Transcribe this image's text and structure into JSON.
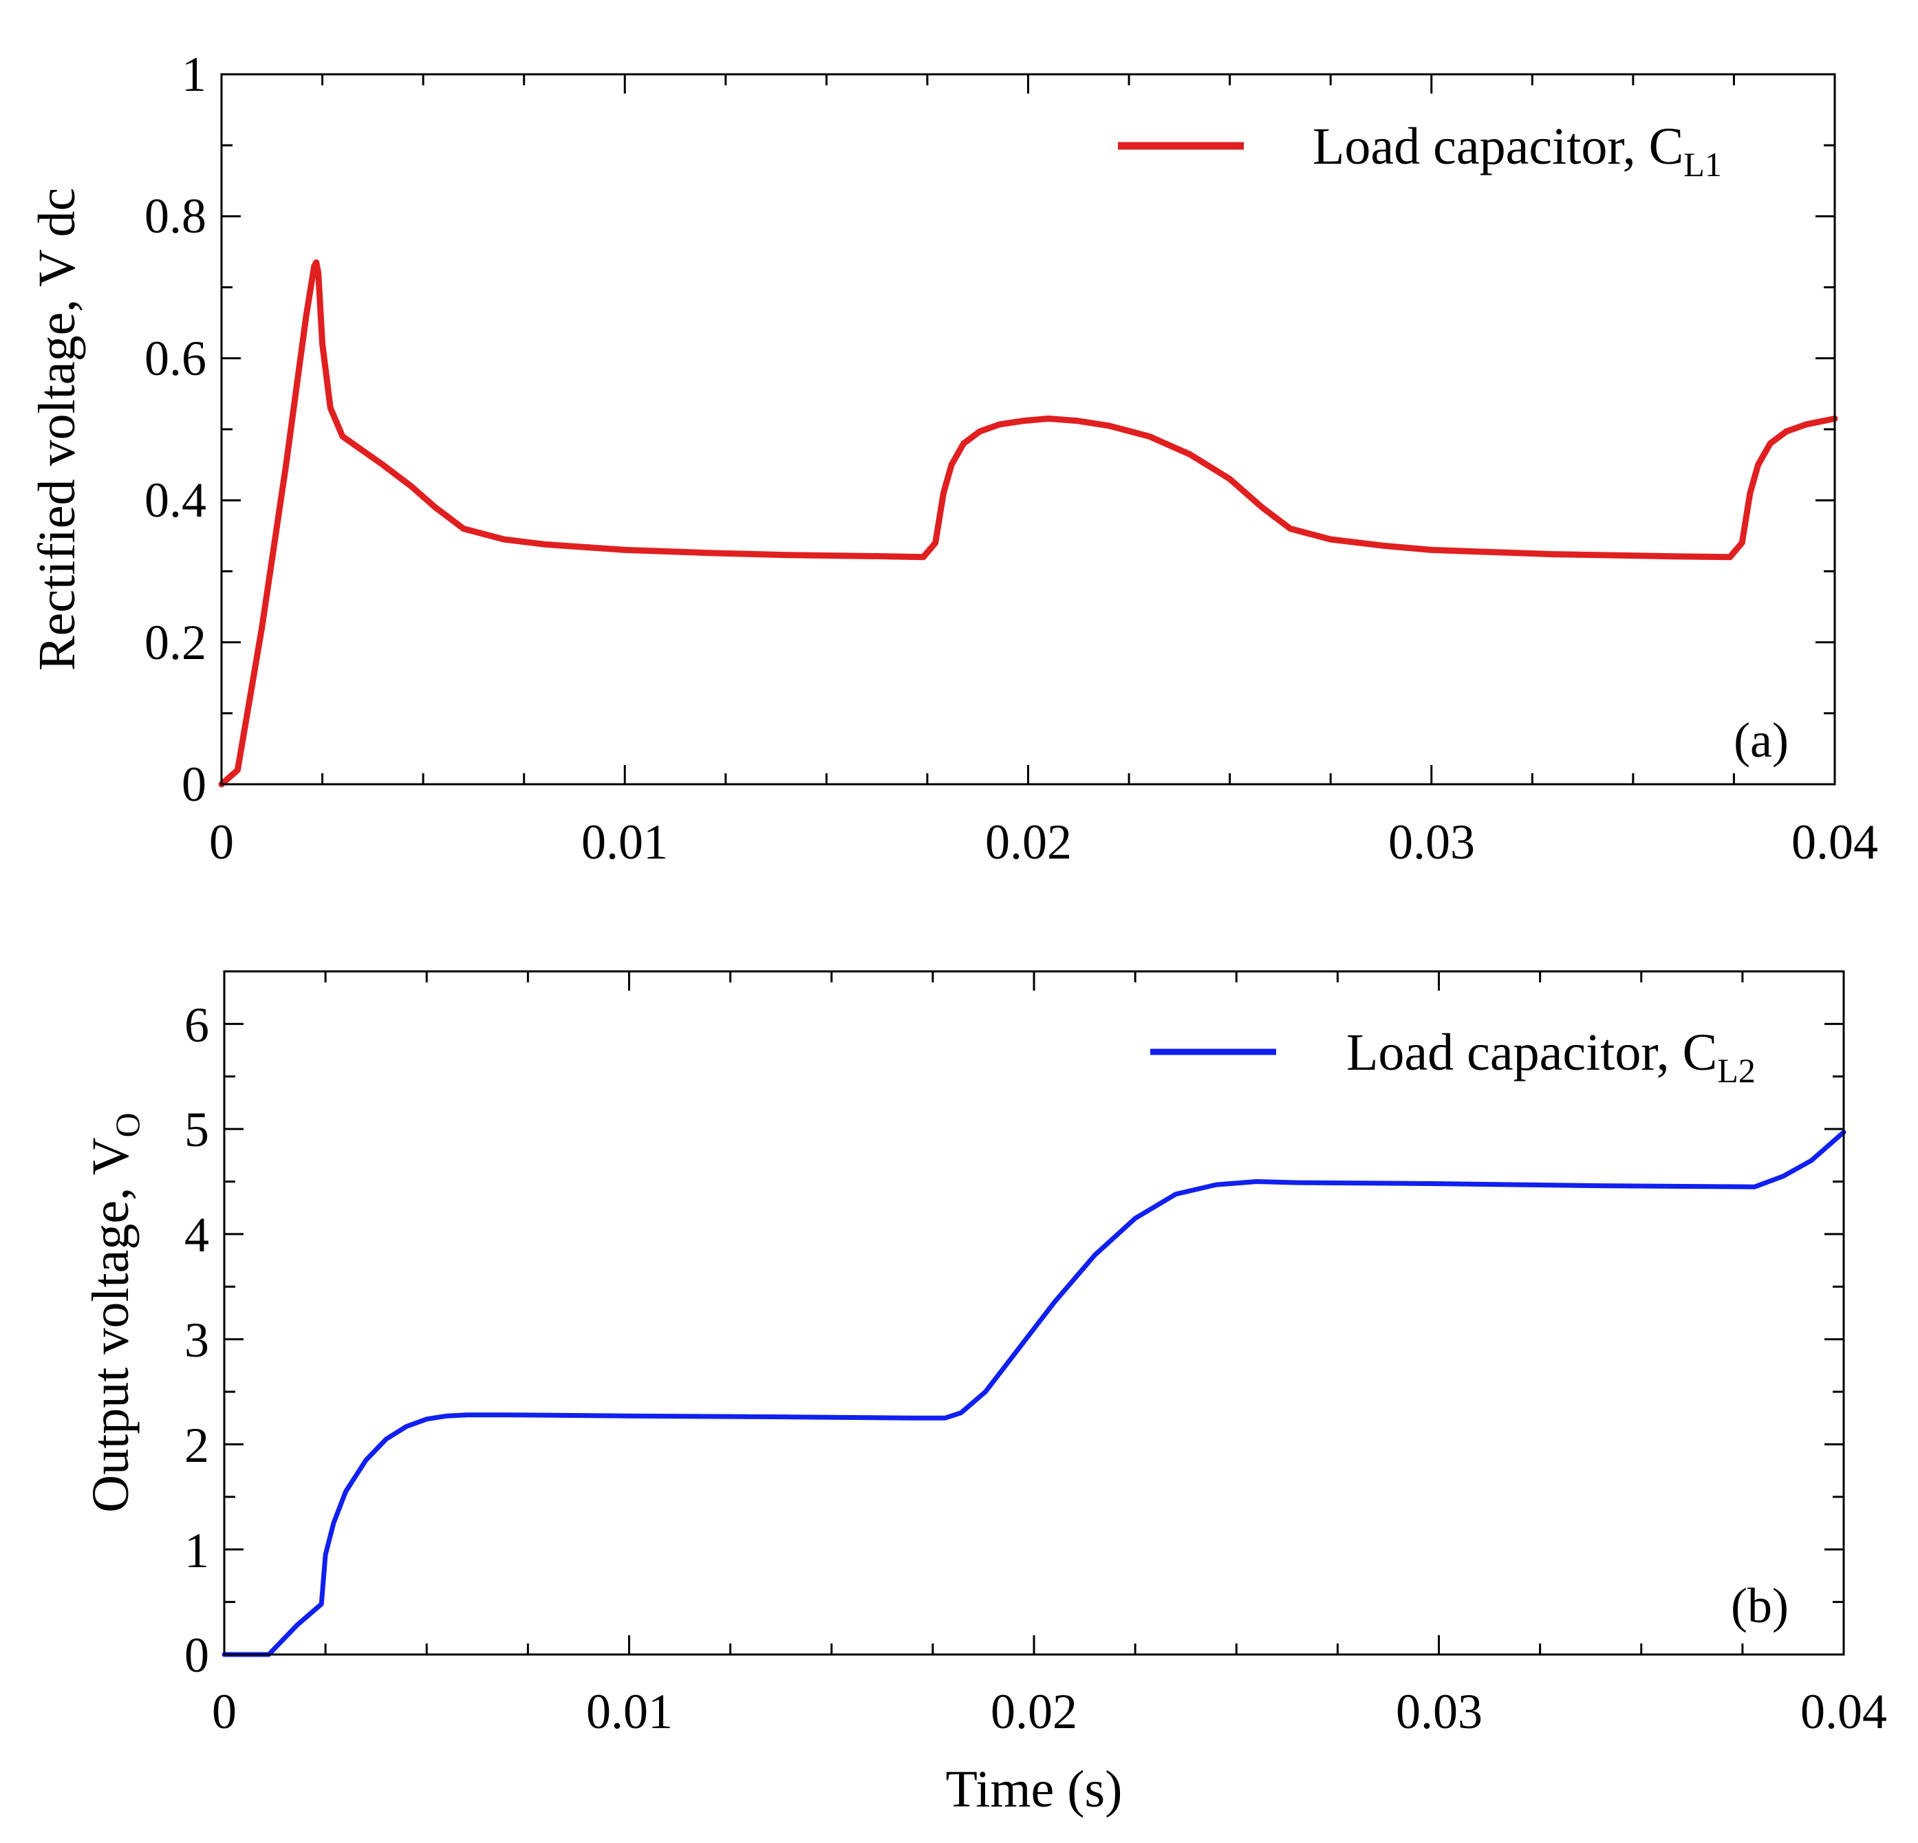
{
  "chart_data": [
    {
      "panel": "a",
      "type": "line",
      "xlabel": "",
      "ylabel": "Rectified voltage, V dc",
      "xlim": [
        0,
        0.04
      ],
      "ylim": [
        0,
        1
      ],
      "xticks": [
        0,
        0.01,
        0.02,
        0.03,
        0.04
      ],
      "xtick_labels": [
        "0",
        "0.01",
        "0.02",
        "0.03",
        "0.04"
      ],
      "yticks": [
        0,
        0.2,
        0.4,
        0.6,
        0.8,
        1
      ],
      "ytick_labels": [
        "0",
        "0.2",
        "0.4",
        "0.6",
        "0.8",
        "1"
      ],
      "panel_label": "(a)",
      "legend": {
        "text": "Load capacitor, C",
        "sub": "L1",
        "placement": "top-right"
      },
      "series": [
        {
          "name": "Load capacitor, CL1",
          "color": "#e02020",
          "x": [
            0,
            0.0004,
            0.001,
            0.0016,
            0.0021,
            0.0023,
            0.00235,
            0.0024,
            0.0025,
            0.0027,
            0.003,
            0.0035,
            0.004,
            0.0047,
            0.0053,
            0.006,
            0.007,
            0.008,
            0.01,
            0.012,
            0.014,
            0.0165,
            0.0174,
            0.0177,
            0.0179,
            0.0181,
            0.0184,
            0.0188,
            0.0193,
            0.0199,
            0.0205,
            0.0212,
            0.022,
            0.023,
            0.024,
            0.025,
            0.0258,
            0.0265,
            0.0275,
            0.0288,
            0.03,
            0.033,
            0.036,
            0.0374,
            0.0377,
            0.0379,
            0.0381,
            0.0384,
            0.0388,
            0.0393,
            0.04
          ],
          "values": [
            0,
            0.02,
            0.22,
            0.45,
            0.66,
            0.73,
            0.735,
            0.72,
            0.62,
            0.53,
            0.49,
            0.47,
            0.45,
            0.42,
            0.39,
            0.36,
            0.345,
            0.338,
            0.33,
            0.326,
            0.323,
            0.321,
            0.32,
            0.34,
            0.41,
            0.45,
            0.48,
            0.497,
            0.507,
            0.512,
            0.515,
            0.512,
            0.505,
            0.49,
            0.465,
            0.43,
            0.39,
            0.36,
            0.345,
            0.336,
            0.33,
            0.324,
            0.321,
            0.32,
            0.34,
            0.41,
            0.45,
            0.48,
            0.497,
            0.507,
            0.515
          ]
        }
      ]
    },
    {
      "panel": "b",
      "type": "line",
      "xlabel": "Time (s)",
      "ylabel": "Output voltage, V",
      "ylabel_sub": "O",
      "xlim": [
        0,
        0.04
      ],
      "ylim": [
        0,
        6.5
      ],
      "xticks": [
        0,
        0.01,
        0.02,
        0.03,
        0.04
      ],
      "xtick_labels": [
        "0",
        "0.01",
        "0.02",
        "0.03",
        "0.04"
      ],
      "yticks": [
        0,
        1,
        2,
        3,
        4,
        5,
        6
      ],
      "ytick_labels": [
        "0",
        "1",
        "2",
        "3",
        "4",
        "5",
        "6"
      ],
      "panel_label": "(b)",
      "legend": {
        "text": "Load capacitor, C",
        "sub": "L2",
        "placement": "top-right"
      },
      "series": [
        {
          "name": "Load capacitor, CL2",
          "color": "#1020ee",
          "x": [
            0,
            0.0011,
            0.0018,
            0.0024,
            0.0025,
            0.0027,
            0.003,
            0.0035,
            0.004,
            0.0045,
            0.005,
            0.0055,
            0.006,
            0.007,
            0.01,
            0.014,
            0.017,
            0.0178,
            0.0182,
            0.0188,
            0.0195,
            0.0205,
            0.0215,
            0.0225,
            0.0235,
            0.0245,
            0.0255,
            0.0265,
            0.03,
            0.034,
            0.0378,
            0.0385,
            0.0392,
            0.04
          ],
          "values": [
            0,
            0,
            0.28,
            0.48,
            0.95,
            1.25,
            1.55,
            1.85,
            2.05,
            2.17,
            2.24,
            2.27,
            2.28,
            2.28,
            2.27,
            2.26,
            2.25,
            2.25,
            2.3,
            2.5,
            2.85,
            3.35,
            3.8,
            4.15,
            4.38,
            4.47,
            4.5,
            4.49,
            4.48,
            4.46,
            4.45,
            4.55,
            4.7,
            4.97
          ]
        }
      ]
    }
  ]
}
